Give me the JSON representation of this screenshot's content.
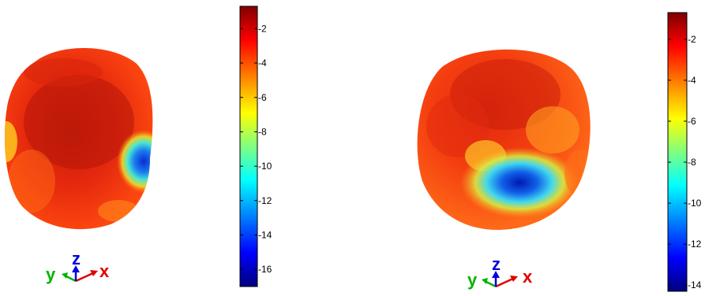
{
  "panels": [
    {
      "id": "left",
      "colorbar": {
        "ticks": [
          "-2",
          "-4",
          "-6",
          "-8",
          "-10",
          "-12",
          "-14",
          "-16"
        ],
        "range": [
          -17,
          -0.7
        ]
      },
      "triad": {
        "x": "x",
        "y": "y",
        "z": "z"
      }
    },
    {
      "id": "right",
      "colorbar": {
        "ticks": [
          "-2",
          "-4",
          "-6",
          "-8",
          "-10",
          "-12",
          "-14"
        ],
        "range": [
          -14.3,
          -0.7
        ]
      },
      "triad": {
        "x": "x",
        "y": "y",
        "z": "z"
      }
    }
  ],
  "colors": {
    "jet_dark_red": "#7f0000",
    "jet_red": "#ff0000",
    "jet_orange": "#ff8000",
    "jet_yellow": "#ffff00",
    "jet_cyan": "#00ffff",
    "jet_blue": "#0000ff",
    "jet_dark_blue": "#00007f",
    "axis_x": "#e00000",
    "axis_y": "#00b400",
    "axis_z": "#0000e0"
  }
}
